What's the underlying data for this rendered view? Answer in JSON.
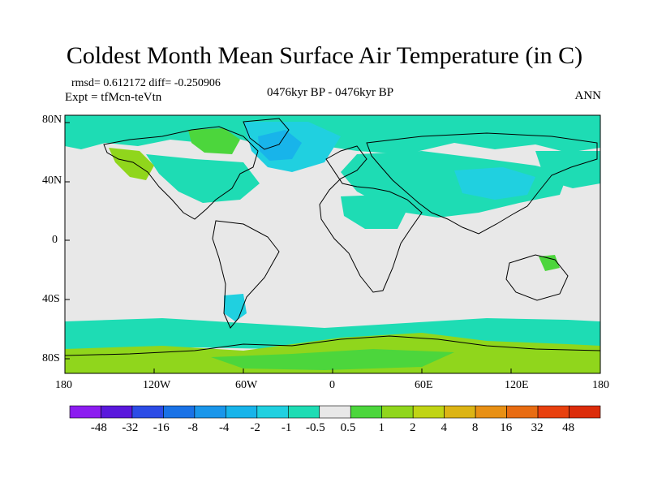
{
  "title": "Coldest Month Mean Surface Air Temperature (in C)",
  "stats": "rmsd= 0.612172 diff= -0.250906",
  "experiment": "Expt = tfMcn-teVtn",
  "period": "0476kyr BP - 0476kyr BP",
  "season": "ANN",
  "lat_ticks": [
    "80N",
    "40N",
    "0",
    "40S",
    "80S"
  ],
  "lon_ticks": [
    "180",
    "120W",
    "60W",
    "0",
    "60E",
    "120E",
    "180"
  ],
  "colorbar": {
    "labels": [
      "-48",
      "-32",
      "-16",
      "-8",
      "-4",
      "-2",
      "-1",
      "-0.5",
      "0.5",
      "1",
      "2",
      "4",
      "8",
      "16",
      "32",
      "48"
    ],
    "colors": [
      "#8c1cf0",
      "#5a18dc",
      "#2c4ce6",
      "#1a72e6",
      "#1a96ea",
      "#18b4ea",
      "#20d0e0",
      "#1edcb4",
      "#e8e8e8",
      "#4cd63c",
      "#90d61c",
      "#c0d414",
      "#dcb414",
      "#e89014",
      "#e86c12",
      "#e8400e",
      "#dc2c0a"
    ]
  },
  "colors": {
    "neutral": "#e8e8e8",
    "cool_light": "#1edcb4",
    "cool_mid": "#20d0e0",
    "cool_dark": "#18b4ea",
    "warm_light": "#4cd63c",
    "warm_mid": "#90d61c",
    "coast": "#000000"
  }
}
